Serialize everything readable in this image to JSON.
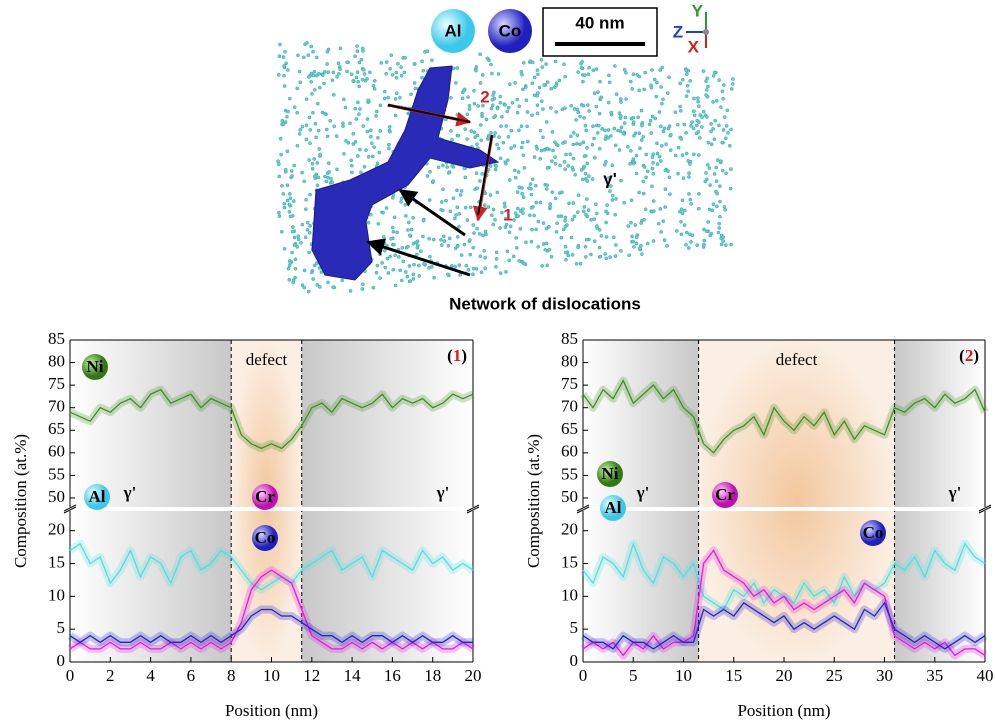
{
  "atom_map": {
    "legend": [
      "Al",
      "Co"
    ],
    "scale_bar": "40 nm",
    "axes": [
      "Y",
      "Z",
      "X"
    ],
    "markers": [
      "2",
      "1"
    ],
    "phase": "γ'",
    "annotation": "Network of dislocations"
  },
  "chart_data": [
    {
      "type": "line",
      "panel_label": {
        "open": "(",
        "number": "1",
        "close": ")"
      },
      "x_label": "Position (nm)",
      "y_label": "Composition (at.%)",
      "xlim": [
        0,
        20
      ],
      "xticks": [
        0,
        2,
        4,
        6,
        8,
        10,
        12,
        14,
        16,
        18,
        20
      ],
      "ylim": [
        0,
        85
      ],
      "ybreak": [
        23,
        48
      ],
      "yticks": [
        0,
        5,
        10,
        15,
        20,
        50,
        55,
        60,
        65,
        70,
        75,
        80,
        85
      ],
      "regions": [
        {
          "label": "γ'",
          "from": 0,
          "to": 8
        },
        {
          "label": "defect",
          "from": 8,
          "to": 11.5
        },
        {
          "label": "γ'",
          "from": 11.5,
          "to": 20
        }
      ],
      "x": [
        0,
        0.5,
        1,
        1.5,
        2,
        2.5,
        3,
        3.5,
        4,
        4.5,
        5,
        5.5,
        6,
        6.5,
        7,
        7.5,
        8,
        8.5,
        9,
        9.5,
        10,
        10.5,
        11,
        11.5,
        12,
        12.5,
        13,
        13.5,
        14,
        14.5,
        15,
        15.5,
        16,
        16.5,
        17,
        17.5,
        18,
        18.5,
        19,
        19.5,
        20
      ],
      "series": [
        {
          "name": "Ni",
          "color": "#3f8f22",
          "values": [
            69,
            68,
            67,
            70,
            69,
            71,
            72,
            70,
            73,
            74,
            71,
            72,
            73,
            70,
            72,
            71,
            70,
            64,
            62,
            61,
            62,
            61,
            63,
            66,
            70,
            71,
            69,
            72,
            71,
            70,
            71,
            73,
            70,
            72,
            71,
            72,
            70,
            71,
            73,
            72,
            73
          ]
        },
        {
          "name": "Al",
          "color": "#55dede",
          "values": [
            17,
            18,
            15,
            16,
            12,
            14,
            17,
            13,
            16,
            15,
            12,
            16,
            17,
            14,
            15,
            17,
            16,
            14,
            12,
            11,
            12,
            13,
            12,
            14,
            15,
            16,
            17,
            14,
            15,
            16,
            13,
            17,
            16,
            15,
            14,
            17,
            15,
            16,
            14,
            15,
            14
          ]
        },
        {
          "name": "Cr",
          "color": "#e01ee0",
          "values": [
            2,
            3,
            2,
            2,
            3,
            2,
            2,
            3,
            2,
            2,
            3,
            2,
            3,
            2,
            3,
            2,
            3,
            6,
            11,
            13,
            14,
            13,
            12,
            8,
            4,
            3,
            2,
            2,
            3,
            2,
            3,
            2,
            3,
            2,
            3,
            2,
            3,
            2,
            2,
            3,
            2
          ]
        },
        {
          "name": "Co",
          "color": "#2525c8",
          "values": [
            4,
            3,
            4,
            3,
            4,
            3,
            3,
            4,
            3,
            4,
            3,
            3,
            4,
            3,
            4,
            3,
            4,
            5,
            7,
            8,
            8,
            7,
            7,
            6,
            5,
            4,
            4,
            3,
            4,
            3,
            4,
            4,
            3,
            4,
            3,
            4,
            3,
            3,
            4,
            3,
            3
          ]
        }
      ]
    },
    {
      "type": "line",
      "panel_label": {
        "open": "(",
        "number": "2",
        "close": ")"
      },
      "x_label": "Position (nm)",
      "y_label": "Composition (at.%)",
      "xlim": [
        0,
        40
      ],
      "xticks": [
        0,
        5,
        10,
        15,
        20,
        25,
        30,
        35,
        40
      ],
      "ylim": [
        0,
        85
      ],
      "ybreak": [
        23,
        48
      ],
      "yticks": [
        0,
        5,
        10,
        15,
        20,
        50,
        55,
        60,
        65,
        70,
        75,
        80,
        85
      ],
      "regions": [
        {
          "label": "γ'",
          "from": 0,
          "to": 11.5
        },
        {
          "label": "defect",
          "from": 11.5,
          "to": 31
        },
        {
          "label": "γ'",
          "from": 31,
          "to": 40
        }
      ],
      "x": [
        0,
        1,
        2,
        3,
        4,
        5,
        6,
        7,
        8,
        9,
        10,
        11,
        12,
        13,
        14,
        15,
        16,
        17,
        18,
        19,
        20,
        21,
        22,
        23,
        24,
        25,
        26,
        27,
        28,
        29,
        30,
        31,
        32,
        33,
        34,
        35,
        36,
        37,
        38,
        39,
        40
      ],
      "series": [
        {
          "name": "Ni",
          "color": "#3f8f22",
          "values": [
            73,
            70,
            74,
            72,
            76,
            71,
            73,
            75,
            72,
            74,
            70,
            68,
            62,
            60,
            63,
            65,
            66,
            68,
            64,
            70,
            67,
            65,
            68,
            66,
            69,
            64,
            67,
            63,
            66,
            65,
            64,
            70,
            69,
            71,
            72,
            70,
            73,
            71,
            72,
            74,
            69
          ]
        },
        {
          "name": "Al",
          "color": "#55dede",
          "values": [
            14,
            12,
            16,
            15,
            13,
            18,
            14,
            12,
            16,
            15,
            13,
            15,
            10,
            9,
            8,
            11,
            10,
            12,
            9,
            11,
            10,
            9,
            12,
            10,
            11,
            9,
            13,
            10,
            12,
            11,
            12,
            15,
            14,
            16,
            13,
            17,
            15,
            14,
            18,
            16,
            15
          ]
        },
        {
          "name": "Cr",
          "color": "#e01ee0",
          "values": [
            2,
            3,
            2,
            3,
            1,
            3,
            2,
            4,
            2,
            3,
            3,
            4,
            15,
            17,
            14,
            13,
            12,
            10,
            11,
            9,
            10,
            8,
            9,
            8,
            9,
            10,
            11,
            9,
            12,
            11,
            10,
            4,
            3,
            2,
            3,
            2,
            3,
            1,
            2,
            2,
            1
          ]
        },
        {
          "name": "Co",
          "color": "#2525c8",
          "values": [
            4,
            3,
            3,
            2,
            4,
            3,
            3,
            2,
            3,
            4,
            3,
            3,
            8,
            7,
            8,
            7,
            9,
            8,
            7,
            6,
            7,
            5,
            6,
            5,
            6,
            7,
            6,
            5,
            8,
            7,
            9,
            5,
            4,
            3,
            4,
            3,
            2,
            3,
            4,
            3,
            4
          ]
        }
      ]
    }
  ]
}
